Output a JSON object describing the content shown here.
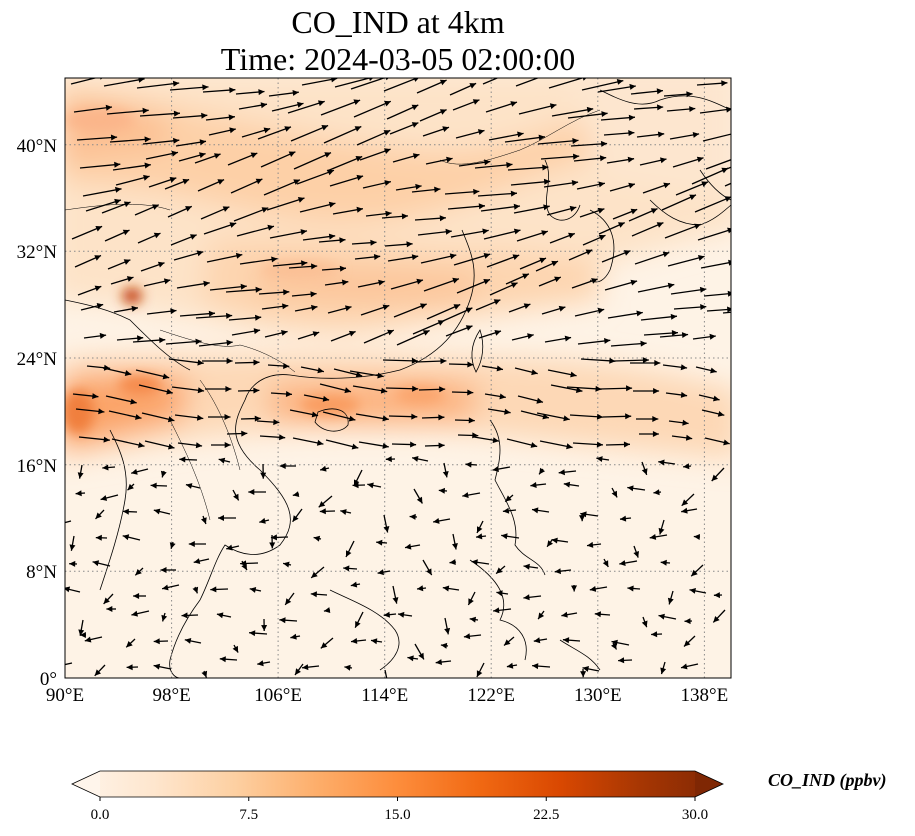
{
  "title": {
    "line1": "CO_IND at 4km",
    "line2": "Time: 2024-03-05 02:00:00"
  },
  "map": {
    "lon_range": [
      90,
      140
    ],
    "lat_range": [
      0,
      45
    ],
    "x_ticks": [
      "90°E",
      "98°E",
      "106°E",
      "114°E",
      "122°E",
      "130°E",
      "138°E"
    ],
    "y_ticks": [
      "0°",
      "8°N",
      "16°N",
      "24°N",
      "32°N",
      "40°N"
    ],
    "gridlines": true
  },
  "colorbar": {
    "label": "CO_IND (ppbv)",
    "ticks": [
      "0.0",
      "7.5",
      "15.0",
      "22.5",
      "30.0"
    ],
    "min": 0,
    "max": 30,
    "extend": "both",
    "cmap": [
      "#fff5eb",
      "#fee6ce",
      "#fdd0a2",
      "#fdae6b",
      "#fd8d3c",
      "#f16913",
      "#d94801",
      "#a63603",
      "#7f2704"
    ]
  }
}
